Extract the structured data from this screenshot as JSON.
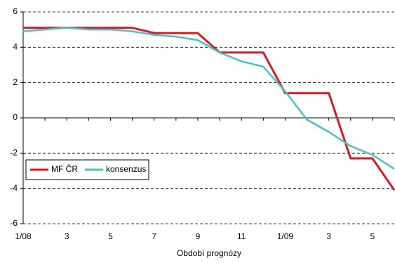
{
  "chart_data": {
    "type": "line",
    "x_label": "Období prognózy",
    "categories": [
      "1/08",
      null,
      "3",
      null,
      "5",
      null,
      "7",
      null,
      "9",
      null,
      "11",
      null,
      "1/09",
      null,
      "3",
      null,
      "5",
      null
    ],
    "series": [
      {
        "name": "MF ČR",
        "color": "#e8141c",
        "values": [
          5.1,
          5.1,
          5.1,
          5.1,
          5.1,
          5.1,
          4.8,
          4.8,
          4.8,
          3.7,
          3.7,
          3.7,
          1.4,
          1.4,
          1.4,
          -2.3,
          -2.3,
          -4.1
        ]
      },
      {
        "name": "konsenzus",
        "color": "#3fc8c8",
        "values": [
          4.9,
          5.0,
          5.1,
          5.0,
          5.0,
          4.9,
          4.7,
          4.6,
          4.4,
          3.7,
          3.2,
          2.9,
          1.5,
          -0.1,
          -0.8,
          -1.6,
          -2.1,
          -2.9
        ]
      }
    ],
    "ylim": [
      -6,
      6
    ],
    "yticks": [
      -6,
      -4,
      -2,
      0,
      2,
      4,
      6
    ],
    "grid": true,
    "legend": "lower left"
  }
}
